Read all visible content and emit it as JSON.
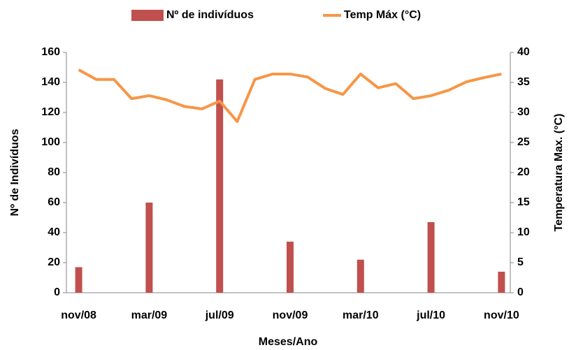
{
  "chart_data": {
    "type": "bar-line",
    "categories": [
      "nov/08",
      null,
      null,
      null,
      "mar/09",
      null,
      null,
      null,
      "jul/09",
      null,
      null,
      null,
      "nov/09",
      null,
      null,
      null,
      "mar/10",
      null,
      null,
      null,
      "jul/10",
      null,
      null,
      null,
      "nov/10"
    ],
    "series": [
      {
        "name": "Nº de indivíduos",
        "type": "bar",
        "color": "#c0504d",
        "values": [
          17,
          0,
          0,
          0,
          60,
          0,
          0,
          0,
          142,
          0,
          0,
          0,
          34,
          0,
          0,
          0,
          22,
          0,
          0,
          0,
          47,
          0,
          0,
          0,
          14
        ]
      },
      {
        "name": "Temp Máx  (°C)",
        "type": "line",
        "axis": "y2",
        "color": "#f79646",
        "values": [
          37.1,
          35.5,
          35.5,
          32.3,
          32.8,
          32.1,
          31.0,
          30.6,
          31.9,
          28.5,
          35.5,
          36.4,
          36.4,
          35.9,
          34.0,
          33.0,
          36.4,
          34.1,
          34.8,
          32.3,
          32.8,
          33.7,
          35.1,
          35.8,
          36.4
        ]
      }
    ],
    "xlabel": "Meses/Ano",
    "ylabel": "Nº de Indivíduos",
    "y2label": "Temperatura Max.  (°C)",
    "ylim": [
      0,
      160
    ],
    "yticks": [
      0,
      20,
      40,
      60,
      80,
      100,
      120,
      140,
      160
    ],
    "y2lim": [
      0,
      40
    ],
    "y2ticks": [
      0,
      5,
      10,
      15,
      20,
      25,
      30,
      35,
      40
    ],
    "legend": "top"
  }
}
